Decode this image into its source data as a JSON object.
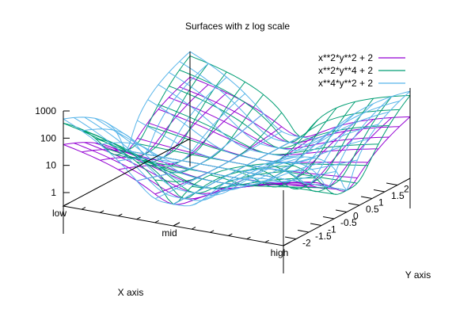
{
  "chart_data": {
    "type": "surface",
    "title": "Surfaces with z log scale",
    "xlabel": "X axis",
    "ylabel": "Y axis",
    "zscale": "log",
    "grid": false,
    "legend_position": "top-right",
    "x_ticklabels": [
      "low",
      "mid",
      "high"
    ],
    "x_range": [
      -3,
      3
    ],
    "x_tick_values": [
      -3,
      0,
      3
    ],
    "y_ticklabels": [
      "-2",
      "-1.5",
      "-1",
      "-0.5",
      "0",
      "0.5",
      "1",
      "1.5",
      "2"
    ],
    "y_range": [
      -2.5,
      2.5
    ],
    "y_tick_values": [
      -2,
      -1.5,
      -1,
      -0.5,
      0,
      0.5,
      1,
      1.5,
      2
    ],
    "z_ticklabels": [
      "1",
      "10",
      "100",
      "1000"
    ],
    "z_tick_values": [
      1,
      10,
      100,
      1000
    ],
    "series": [
      {
        "name": "x**2*y**2 + 2",
        "expr": "x^2*y^2+2",
        "color": "#9400d3"
      },
      {
        "name": "x**2*y**4 + 2",
        "expr": "x^2*y^4+2",
        "color": "#009e73"
      },
      {
        "name": "x**4*y**2 + 2",
        "expr": "x^4*y^2+2",
        "color": "#56b4e9"
      }
    ]
  }
}
